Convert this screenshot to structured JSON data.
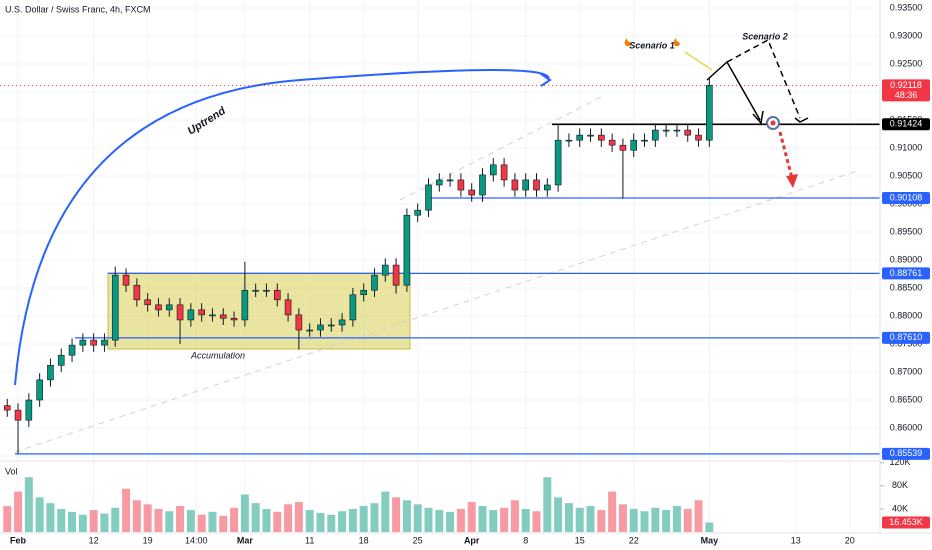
{
  "chart_data": {
    "type": "candlestick",
    "title": "U.S. Dollar / Swiss Franc, 4h, FXCM",
    "x": [
      -1,
      0,
      1,
      2,
      3,
      4,
      5,
      6,
      7,
      8,
      9,
      10,
      11,
      12,
      13,
      14,
      15,
      16,
      17,
      18,
      19,
      20,
      21,
      22,
      23,
      24,
      25,
      26,
      27,
      28,
      29,
      30,
      31,
      32,
      33,
      34,
      35,
      36,
      37,
      38,
      39,
      40,
      41,
      42,
      43,
      44,
      45,
      46,
      47,
      48,
      49,
      50,
      51,
      52,
      53,
      54,
      55,
      56,
      57,
      58,
      59,
      60,
      61,
      62,
      63,
      64
    ],
    "open": [
      0.864,
      0.8632,
      0.8614,
      0.865,
      0.8686,
      0.8712,
      0.873,
      0.8748,
      0.8757,
      0.8748,
      0.8757,
      0.8873,
      0.8855,
      0.8829,
      0.882,
      0.8811,
      0.882,
      0.8793,
      0.8811,
      0.8802,
      0.8802,
      0.8796,
      0.8793,
      0.8846,
      0.8846,
      0.8846,
      0.8829,
      0.8802,
      0.8775,
      0.8775,
      0.8784,
      0.8784,
      0.8793,
      0.8838,
      0.8846,
      0.8873,
      0.8891,
      0.8855,
      0.898,
      0.8989,
      0.9034,
      0.9043,
      0.9043,
      0.9025,
      0.9016,
      0.9052,
      0.907,
      0.9043,
      0.9025,
      0.9043,
      0.9025,
      0.9034,
      0.9114,
      0.9114,
      0.9123,
      0.9123,
      0.9114,
      0.9105,
      0.9096,
      0.9114,
      0.9114,
      0.9132,
      0.9132,
      0.9132,
      0.9123,
      0.9114
    ],
    "high": [
      0.8652,
      0.8644,
      0.8662,
      0.8698,
      0.8724,
      0.8742,
      0.876,
      0.8769,
      0.8769,
      0.8769,
      0.8888,
      0.8885,
      0.8867,
      0.8841,
      0.8832,
      0.8832,
      0.8832,
      0.8823,
      0.8823,
      0.8814,
      0.8814,
      0.8808,
      0.8897,
      0.8858,
      0.8858,
      0.8858,
      0.8841,
      0.8814,
      0.8787,
      0.8796,
      0.8796,
      0.8805,
      0.885,
      0.8858,
      0.8885,
      0.8903,
      0.8903,
      0.8992,
      0.9001,
      0.9046,
      0.9055,
      0.9055,
      0.9055,
      0.9037,
      0.9064,
      0.9082,
      0.9082,
      0.9055,
      0.9055,
      0.9055,
      0.9046,
      0.9143,
      0.9126,
      0.9135,
      0.9135,
      0.9135,
      0.9126,
      0.9117,
      0.9126,
      0.9126,
      0.9144,
      0.9144,
      0.9144,
      0.9144,
      0.9135,
      0.9225
    ],
    "low": [
      0.862,
      0.8554,
      0.8602,
      0.8638,
      0.8674,
      0.87,
      0.8718,
      0.8736,
      0.8736,
      0.8736,
      0.8745,
      0.8843,
      0.8817,
      0.8808,
      0.8799,
      0.8799,
      0.875,
      0.8781,
      0.879,
      0.879,
      0.8784,
      0.8781,
      0.8781,
      0.8834,
      0.8834,
      0.8817,
      0.879,
      0.874,
      0.8763,
      0.8763,
      0.8772,
      0.8772,
      0.8781,
      0.8826,
      0.8834,
      0.8861,
      0.884,
      0.8843,
      0.8968,
      0.8977,
      0.9022,
      0.9031,
      0.9013,
      0.9004,
      0.9004,
      0.904,
      0.9031,
      0.9013,
      0.9013,
      0.9013,
      0.9013,
      0.9022,
      0.9102,
      0.9102,
      0.9111,
      0.9102,
      0.9093,
      0.901,
      0.9084,
      0.9102,
      0.9102,
      0.912,
      0.912,
      0.9111,
      0.9102,
      0.9102
    ],
    "close": [
      0.8632,
      0.8614,
      0.865,
      0.8686,
      0.8712,
      0.873,
      0.8748,
      0.8757,
      0.8748,
      0.8757,
      0.8873,
      0.8855,
      0.8829,
      0.882,
      0.8811,
      0.882,
      0.8793,
      0.8811,
      0.8802,
      0.8802,
      0.8796,
      0.8793,
      0.8846,
      0.8846,
      0.8846,
      0.8829,
      0.8802,
      0.8775,
      0.8775,
      0.8784,
      0.8784,
      0.8793,
      0.8838,
      0.8846,
      0.8873,
      0.8891,
      0.8855,
      0.898,
      0.8989,
      0.9034,
      0.9043,
      0.9043,
      0.9025,
      0.9016,
      0.9052,
      0.907,
      0.9043,
      0.9025,
      0.9043,
      0.9025,
      0.9034,
      0.9114,
      0.9114,
      0.9123,
      0.9123,
      0.9114,
      0.9105,
      0.9096,
      0.9114,
      0.9114,
      0.9132,
      0.9132,
      0.9132,
      0.9123,
      0.9114,
      0.92118
    ],
    "up_color": "#089981",
    "down_color": "#f23645",
    "xlim": [
      -1.67,
      79.8
    ],
    "ylim": [
      0.85429,
      0.93643
    ],
    "grid": true,
    "xticks": [
      {
        "value": 0,
        "label": "Feb"
      },
      {
        "value": 7,
        "label": "12"
      },
      {
        "value": 12,
        "label": "19"
      },
      {
        "value": 16.5,
        "label": "14:00"
      },
      {
        "value": 21,
        "label": "Mar"
      },
      {
        "value": 27,
        "label": "11"
      },
      {
        "value": 32,
        "label": "18"
      },
      {
        "value": 37,
        "label": "25"
      },
      {
        "value": 42,
        "label": "Apr"
      },
      {
        "value": 47,
        "label": "8"
      },
      {
        "value": 52,
        "label": "15"
      },
      {
        "value": 57,
        "label": "22"
      },
      {
        "value": 64,
        "label": "May"
      },
      {
        "value": 72,
        "label": "13"
      },
      {
        "value": 77,
        "label": "20"
      }
    ],
    "yticks": [
      {
        "value": 0.935,
        "label": "0.93500"
      },
      {
        "value": 0.93,
        "label": "0.93000"
      },
      {
        "value": 0.925,
        "label": "0.92500"
      },
      {
        "value": 0.92,
        "label": "0.92000"
      },
      {
        "value": 0.915,
        "label": "0.91500"
      },
      {
        "value": 0.91,
        "label": "0.91000"
      },
      {
        "value": 0.905,
        "label": "0.90500"
      },
      {
        "value": 0.9,
        "label": "0.90000"
      },
      {
        "value": 0.895,
        "label": "0.89500"
      },
      {
        "value": 0.89,
        "label": "0.89000"
      },
      {
        "value": 0.885,
        "label": "0.88500"
      },
      {
        "value": 0.88,
        "label": "0.88000"
      },
      {
        "value": 0.875,
        "label": "0.87500"
      },
      {
        "value": 0.87,
        "label": "0.87000"
      },
      {
        "value": 0.865,
        "label": "0.86500"
      },
      {
        "value": 0.86,
        "label": "0.86000"
      },
      {
        "value": 0.855,
        "label": "0.85500"
      }
    ],
    "current_price": {
      "value": 0.92118,
      "countdown": "48:36",
      "color": "#f23645"
    },
    "price_lines": [
      {
        "value": 0.91424,
        "color": "#000000"
      },
      {
        "value": 0.90108,
        "color": "#2962ff"
      },
      {
        "value": 0.88761,
        "color": "#2962ff"
      },
      {
        "value": 0.8761,
        "label": "0.87610",
        "color": "#2962ff"
      },
      {
        "value": 0.85539,
        "color": "#2962ff"
      }
    ],
    "annotations": {
      "uptrend": "Uptrend",
      "accumulation": "Accumulation",
      "scenario_1": "Scenario 1",
      "scenario_2": "Scenario 2"
    },
    "volume": {
      "label": "Vol",
      "values": [
        45000,
        70000,
        95000,
        60000,
        50000,
        40000,
        35000,
        30000,
        38000,
        32000,
        42000,
        75000,
        55000,
        48000,
        40000,
        36000,
        45000,
        38000,
        30000,
        35000,
        28000,
        42000,
        65000,
        50000,
        40000,
        35000,
        48000,
        52000,
        38000,
        33000,
        30000,
        36000,
        40000,
        45000,
        50000,
        70000,
        60000,
        55000,
        48000,
        42000,
        38000,
        35000,
        40000,
        52000,
        45000,
        38000,
        42000,
        55000,
        40000,
        36000,
        95000,
        60000,
        50000,
        42000,
        45000,
        38000,
        70000,
        48000,
        40000,
        36000,
        42000,
        38000,
        45000,
        40000,
        55000,
        16453
      ],
      "last_value_label": "16.453K",
      "ylim": [
        0,
        130000
      ],
      "yticks": [
        {
          "value": 40000,
          "label": "40K"
        },
        {
          "value": 80000,
          "label": "80K"
        },
        {
          "value": 120000,
          "label": "120K"
        }
      ]
    }
  }
}
